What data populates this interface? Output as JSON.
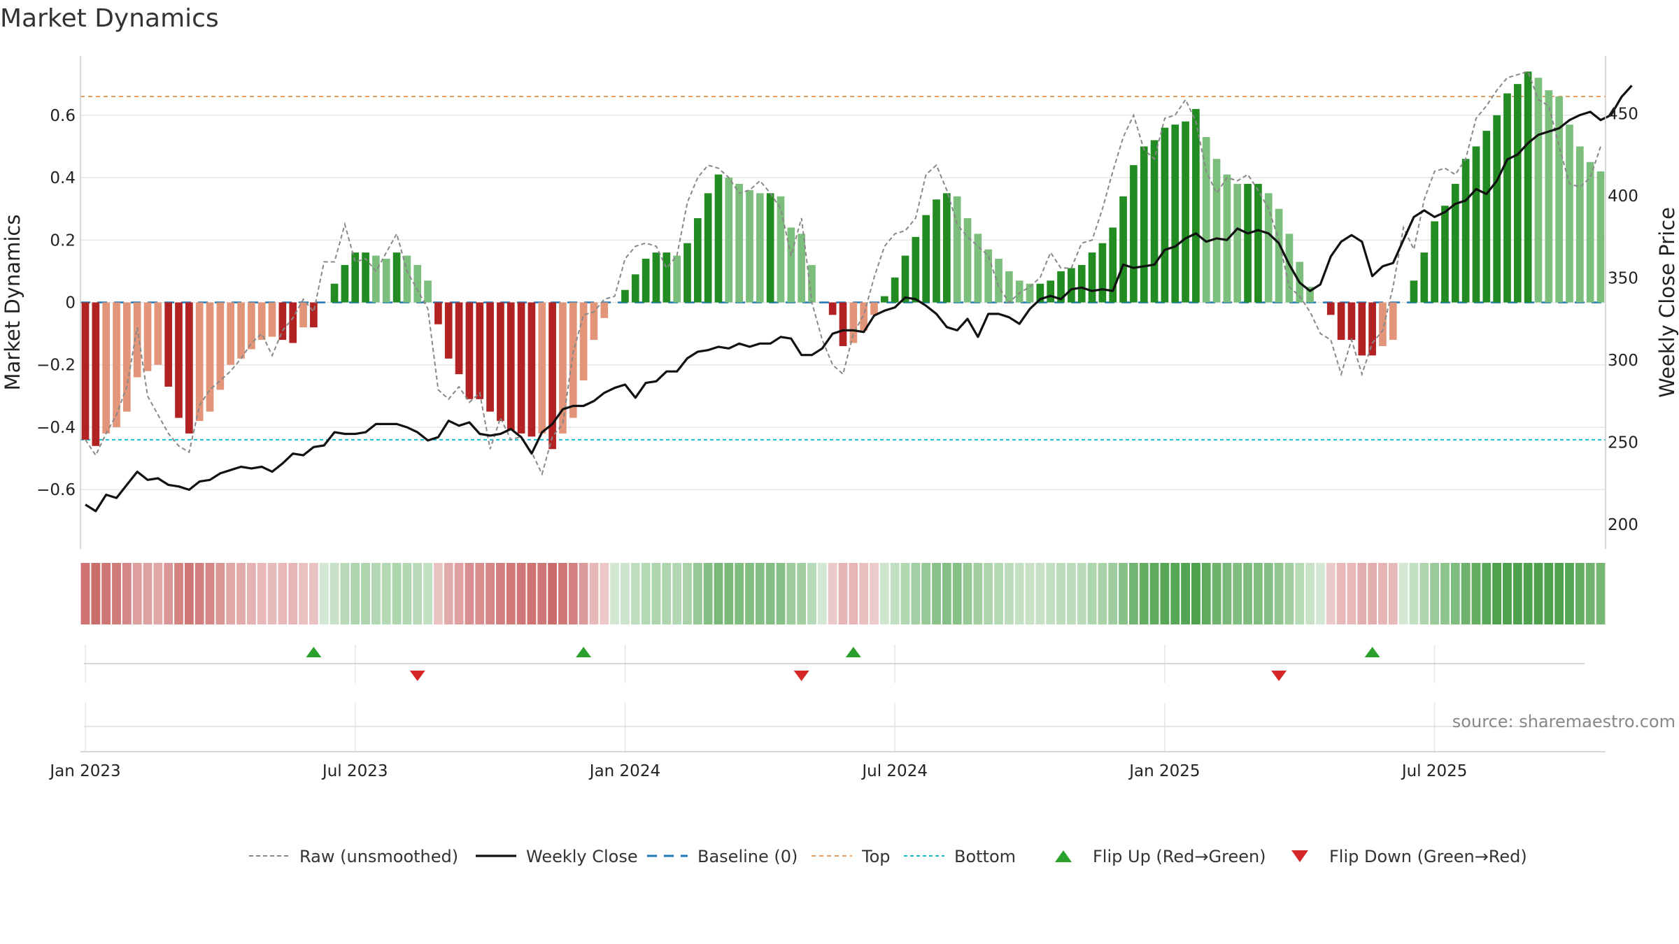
{
  "title": "Market Dynamics",
  "source": "source: sharemaestro.com",
  "colors": {
    "bright_green": "#228b22",
    "light_green": "#7cbf7c",
    "dark_red": "#b22222",
    "light_red": "#e3957a",
    "close_line": "#111111",
    "raw_line": "#888888",
    "baseline": "#1f77b4",
    "top_line": "#e8a060",
    "bottom_line": "#17becf",
    "flip_up": "#2ca02c",
    "flip_down": "#d62728"
  },
  "chart_data": {
    "type": "bar",
    "title": "Market Dynamics",
    "ylabel": "Market Dynamics",
    "y2label": "Weekly Close Price",
    "ylim": [
      -0.79,
      0.79
    ],
    "y2lim": [
      185,
      485
    ],
    "yticks": [
      0.6,
      0.4,
      0.2,
      0,
      -0.2,
      -0.4,
      -0.6
    ],
    "ytick_labels": [
      "0.6",
      "0.4",
      "0.2",
      "0",
      "−0.2",
      "−0.4",
      "−0.6"
    ],
    "y2ticks": [
      450,
      400,
      350,
      300,
      250,
      200
    ],
    "xtick_labels": [
      "Jan 2023",
      "Jul 2023",
      "Jan 2024",
      "Jul 2024",
      "Jan 2025",
      "Jul 2025"
    ],
    "xtick_week": [
      0,
      26,
      52,
      78,
      104,
      130
    ],
    "top_level": 0.66,
    "bottom_level": -0.44,
    "baseline": 0,
    "grid": true,
    "legend_position": "bottom",
    "legend": [
      "Raw (unsmoothed)",
      "Weekly Close",
      "Baseline (0)",
      "Top",
      "Bottom",
      "Flip Up (Red→Green)",
      "Flip Down (Green→Red)"
    ],
    "dynamics": [
      -0.44,
      -0.46,
      -0.42,
      -0.4,
      -0.35,
      -0.24,
      -0.22,
      -0.2,
      -0.27,
      -0.37,
      -0.42,
      -0.38,
      -0.35,
      -0.28,
      -0.2,
      -0.18,
      -0.15,
      -0.12,
      -0.11,
      -0.12,
      -0.13,
      -0.08,
      -0.08,
      0.0,
      0.06,
      0.12,
      0.16,
      0.16,
      0.15,
      0.14,
      0.16,
      0.15,
      0.12,
      0.07,
      -0.07,
      -0.18,
      -0.23,
      -0.31,
      -0.31,
      -0.35,
      -0.38,
      -0.41,
      -0.42,
      -0.43,
      -0.42,
      -0.47,
      -0.42,
      -0.37,
      -0.25,
      -0.12,
      -0.05,
      0.0,
      0.04,
      0.09,
      0.14,
      0.16,
      0.16,
      0.15,
      0.19,
      0.27,
      0.35,
      0.41,
      0.4,
      0.38,
      0.36,
      0.35,
      0.35,
      0.34,
      0.24,
      0.22,
      0.12,
      0.0,
      -0.04,
      -0.14,
      -0.13,
      -0.09,
      -0.04,
      0.02,
      0.08,
      0.15,
      0.21,
      0.28,
      0.33,
      0.35,
      0.34,
      0.27,
      0.22,
      0.17,
      0.14,
      0.1,
      0.07,
      0.06,
      0.06,
      0.07,
      0.1,
      0.11,
      0.12,
      0.16,
      0.19,
      0.24,
      0.34,
      0.44,
      0.5,
      0.52,
      0.56,
      0.57,
      0.58,
      0.62,
      0.53,
      0.46,
      0.41,
      0.38,
      0.38,
      0.38,
      0.35,
      0.3,
      0.22,
      0.13,
      0.05,
      0.0,
      -0.04,
      -0.12,
      -0.12,
      -0.17,
      -0.17,
      -0.14,
      -0.12,
      0.0,
      0.07,
      0.16,
      0.26,
      0.31,
      0.38,
      0.46,
      0.5,
      0.55,
      0.6,
      0.67,
      0.7,
      0.74,
      0.72,
      0.68,
      0.66,
      0.57,
      0.5,
      0.45,
      0.42
    ],
    "raw": [
      -0.44,
      -0.49,
      -0.42,
      -0.36,
      -0.27,
      -0.08,
      -0.3,
      -0.36,
      -0.42,
      -0.46,
      -0.48,
      -0.33,
      -0.28,
      -0.25,
      -0.22,
      -0.18,
      -0.13,
      -0.1,
      -0.17,
      -0.09,
      -0.05,
      0.01,
      -0.03,
      0.13,
      0.13,
      0.25,
      0.13,
      0.14,
      0.1,
      0.16,
      0.22,
      0.1,
      0.04,
      -0.02,
      -0.28,
      -0.31,
      -0.27,
      -0.32,
      -0.29,
      -0.47,
      -0.37,
      -0.44,
      -0.43,
      -0.48,
      -0.55,
      -0.43,
      -0.39,
      -0.16,
      -0.04,
      -0.03,
      0.01,
      0.02,
      0.14,
      0.18,
      0.19,
      0.18,
      0.11,
      0.15,
      0.32,
      0.4,
      0.44,
      0.43,
      0.4,
      0.35,
      0.36,
      0.39,
      0.35,
      0.3,
      0.15,
      0.27,
      0.0,
      -0.12,
      -0.2,
      -0.23,
      -0.1,
      -0.04,
      0.08,
      0.18,
      0.22,
      0.23,
      0.27,
      0.41,
      0.44,
      0.36,
      0.25,
      0.21,
      0.18,
      0.15,
      0.05,
      0.0,
      0.03,
      0.05,
      0.08,
      0.16,
      0.11,
      0.11,
      0.19,
      0.2,
      0.3,
      0.42,
      0.53,
      0.6,
      0.49,
      0.46,
      0.59,
      0.6,
      0.65,
      0.58,
      0.42,
      0.35,
      0.4,
      0.39,
      0.41,
      0.36,
      0.3,
      0.2,
      0.05,
      0.02,
      -0.03,
      -0.1,
      -0.12,
      -0.23,
      -0.12,
      -0.23,
      -0.13,
      -0.09,
      0.05,
      0.24,
      0.17,
      0.33,
      0.42,
      0.43,
      0.41,
      0.46,
      0.59,
      0.63,
      0.68,
      0.72,
      0.73,
      0.74,
      0.65,
      0.63,
      0.5,
      0.38,
      0.37,
      0.4,
      0.5
    ],
    "close": [
      212,
      208,
      218,
      216,
      224,
      232,
      227,
      228,
      224,
      223,
      221,
      226,
      227,
      231,
      233,
      235,
      234,
      235,
      232,
      237,
      243,
      242,
      247,
      248,
      256,
      255,
      255,
      256,
      261,
      261,
      261,
      259,
      256,
      251,
      253,
      263,
      260,
      262,
      255,
      254,
      255,
      258,
      253,
      243,
      256,
      261,
      270,
      272,
      272,
      275,
      280,
      283,
      285,
      277,
      286,
      287,
      293,
      293,
      301,
      305,
      306,
      308,
      307,
      310,
      308,
      310,
      310,
      314,
      313,
      303,
      303,
      307,
      316,
      318,
      318,
      317,
      327,
      330,
      332,
      338,
      337,
      333,
      328,
      320,
      318,
      325,
      314,
      328,
      328,
      326,
      322,
      331,
      337,
      339,
      337,
      343,
      344,
      342,
      343,
      342,
      358,
      356,
      357,
      358,
      367,
      369,
      374,
      377,
      372,
      374,
      373,
      380,
      377,
      379,
      377,
      371,
      358,
      347,
      342,
      346,
      363,
      372,
      376,
      372,
      351,
      357,
      359,
      373,
      387,
      391,
      387,
      390,
      395,
      397,
      404,
      401,
      409,
      422,
      425,
      432,
      437,
      439,
      441,
      446,
      449,
      451,
      446,
      449,
      460,
      467
    ]
  },
  "heatmap": {
    "label": "state strip",
    "values": [
      -0.44,
      -0.46,
      -0.42,
      -0.4,
      -0.35,
      -0.24,
      -0.22,
      -0.2,
      -0.27,
      -0.37,
      -0.42,
      -0.38,
      -0.35,
      -0.28,
      -0.2,
      -0.18,
      -0.15,
      -0.12,
      -0.11,
      -0.12,
      -0.13,
      -0.08,
      -0.08,
      0.0,
      0.06,
      0.12,
      0.16,
      0.16,
      0.15,
      0.14,
      0.16,
      0.15,
      0.12,
      0.07,
      -0.07,
      -0.18,
      -0.23,
      -0.31,
      -0.31,
      -0.35,
      -0.38,
      -0.41,
      -0.42,
      -0.43,
      -0.42,
      -0.47,
      -0.42,
      -0.37,
      -0.25,
      -0.12,
      -0.05,
      0.0,
      0.04,
      0.09,
      0.14,
      0.16,
      0.16,
      0.15,
      0.19,
      0.27,
      0.35,
      0.41,
      0.4,
      0.38,
      0.36,
      0.35,
      0.35,
      0.34,
      0.24,
      0.22,
      0.12,
      0.0,
      -0.04,
      -0.14,
      -0.13,
      -0.09,
      -0.04,
      0.02,
      0.08,
      0.15,
      0.21,
      0.28,
      0.33,
      0.35,
      0.34,
      0.27,
      0.22,
      0.17,
      0.14,
      0.1,
      0.07,
      0.06,
      0.06,
      0.07,
      0.1,
      0.11,
      0.12,
      0.16,
      0.19,
      0.24,
      0.34,
      0.44,
      0.5,
      0.52,
      0.56,
      0.57,
      0.58,
      0.62,
      0.53,
      0.46,
      0.41,
      0.38,
      0.38,
      0.38,
      0.35,
      0.3,
      0.22,
      0.13,
      0.05,
      0.0,
      -0.04,
      -0.12,
      -0.12,
      -0.17,
      -0.17,
      -0.14,
      -0.12,
      0.0,
      0.07,
      0.16,
      0.26,
      0.31,
      0.38,
      0.46,
      0.5,
      0.55,
      0.6,
      0.67,
      0.7,
      0.74,
      0.72,
      0.68,
      0.66,
      0.57,
      0.5,
      0.45,
      0.42
    ]
  },
  "flips": {
    "up_weeks": [
      22,
      48,
      74,
      124
    ],
    "down_weeks": [
      32,
      69,
      115
    ]
  }
}
